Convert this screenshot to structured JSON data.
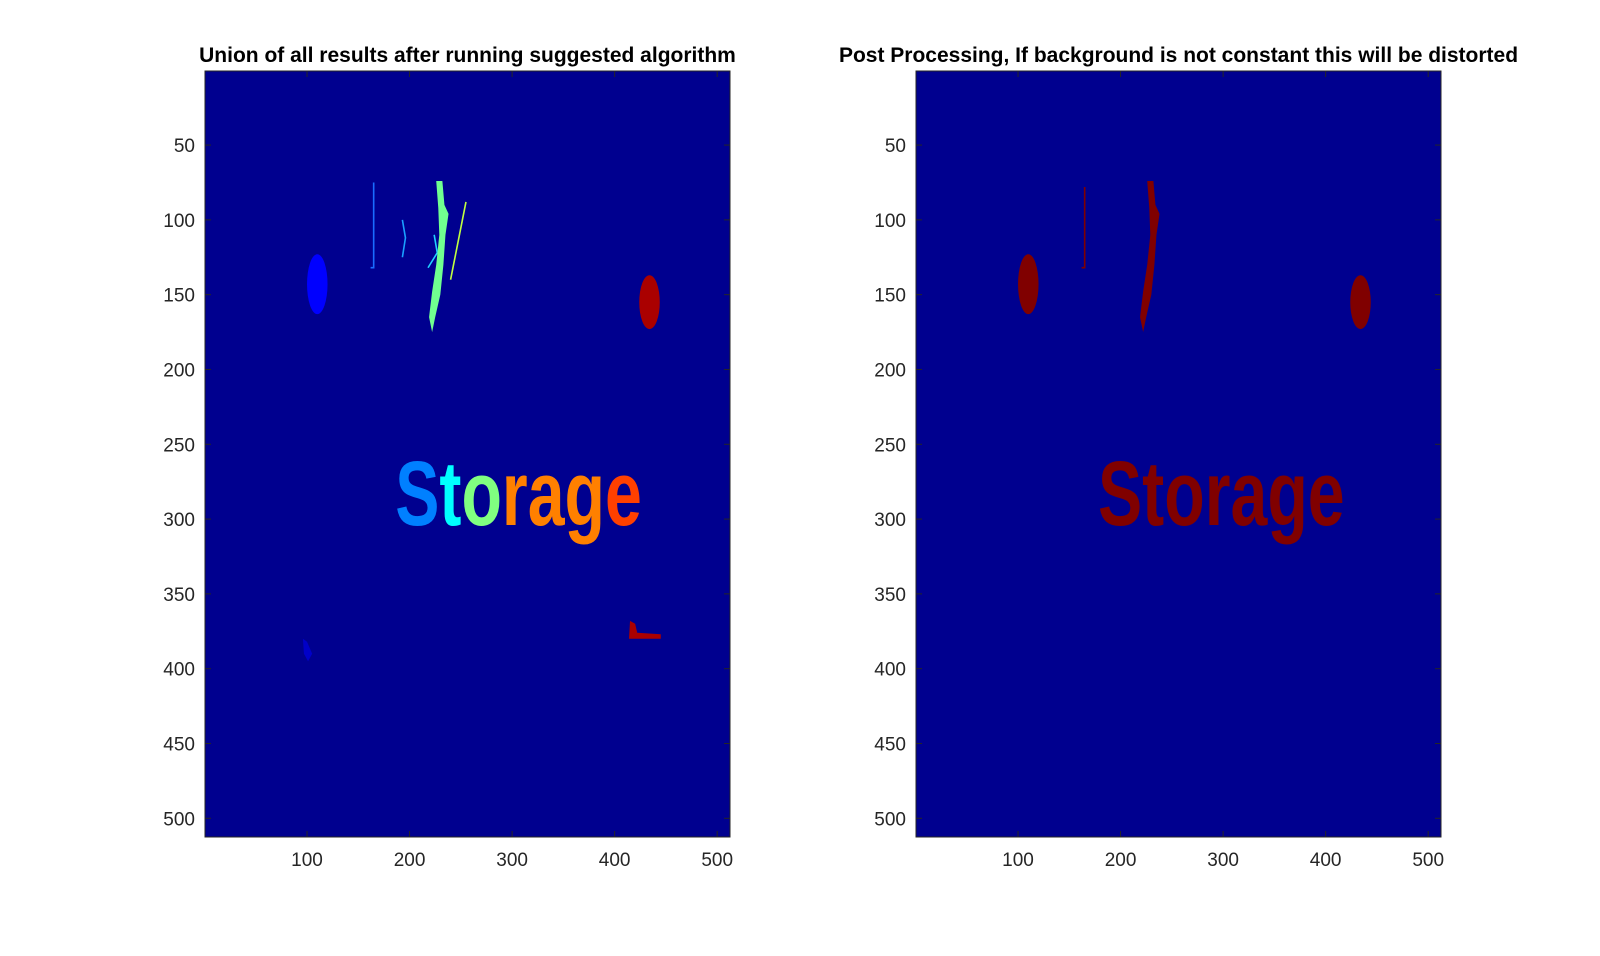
{
  "colors": {
    "background": "#00008f",
    "axis": "#262626",
    "tick_label": "#262626",
    "title": "#000000",
    "dark_red": "#800000"
  },
  "chart_data": [
    {
      "type": "heatmap",
      "title": "Union of all results after running suggested algorithm",
      "xlabel": "",
      "ylabel": "",
      "colormap": "jet",
      "xlim": [
        0.5,
        512.5
      ],
      "ylim": [
        0.5,
        512.5
      ],
      "y_reversed": true,
      "grid": false,
      "legend": "none",
      "xticks": [
        100,
        200,
        300,
        400,
        500
      ],
      "yticks": [
        50,
        100,
        150,
        200,
        250,
        300,
        350,
        400,
        450,
        500
      ],
      "text_overlay": {
        "text": "Storage",
        "x": 186,
        "y": 304,
        "letter_colors": [
          "#0080ff",
          "#00ffff",
          "#80ff80",
          "#ff8000",
          "#ff8000",
          "#ff8000",
          "#ff4000"
        ]
      },
      "regions": [
        {
          "shape": "ellipse",
          "cx": 110,
          "cy": 143,
          "rx": 10,
          "ry": 20,
          "color": "#0000ff"
        },
        {
          "shape": "ellipse",
          "cx": 434,
          "cy": 155,
          "rx": 10,
          "ry": 18,
          "color": "#aa0000"
        },
        {
          "shape": "stroke",
          "points": [
            [
              165,
              75
            ],
            [
              165,
              132
            ],
            [
              162,
              132
            ]
          ],
          "color": "#1a6cff"
        },
        {
          "shape": "stroke",
          "points": [
            [
              193,
              100
            ],
            [
              196,
              112
            ],
            [
              193,
              125
            ]
          ],
          "color": "#1aa0ff"
        },
        {
          "shape": "stroke",
          "points": [
            [
              224,
              110
            ],
            [
              227,
              122
            ],
            [
              218,
              132
            ]
          ],
          "color": "#20d0ff"
        },
        {
          "shape": "blob",
          "points": [
            [
              226,
              74
            ],
            [
              232,
              74
            ],
            [
              234,
              90
            ],
            [
              238,
              96
            ],
            [
              235,
              110
            ],
            [
              233,
              130
            ],
            [
              230,
              150
            ],
            [
              225,
              165
            ],
            [
              222,
              175
            ],
            [
              219,
              165
            ],
            [
              222,
              148
            ],
            [
              226,
              130
            ],
            [
              229,
              110
            ],
            [
              228,
              92
            ]
          ],
          "color": "#70ff90"
        },
        {
          "shape": "stroke",
          "points": [
            [
              255,
              88
            ],
            [
              240,
              140
            ]
          ],
          "color": "#c0ff40"
        },
        {
          "shape": "blob",
          "points": [
            [
              96,
              380
            ],
            [
              100,
              382
            ],
            [
              105,
              390
            ],
            [
              101,
              395
            ],
            [
              97,
              390
            ]
          ],
          "color": "#0000c8"
        },
        {
          "shape": "blob",
          "points": [
            [
              415,
              368
            ],
            [
              420,
              370
            ],
            [
              422,
              376
            ],
            [
              445,
              377
            ],
            [
              445,
              380
            ],
            [
              414,
              380
            ]
          ],
          "color": "#aa0000"
        }
      ]
    },
    {
      "type": "heatmap",
      "title": "Post Processing, If background is not constant this will be distorted",
      "xlabel": "",
      "ylabel": "",
      "colormap": "jet",
      "xlim": [
        0.5,
        512.5
      ],
      "ylim": [
        0.5,
        512.5
      ],
      "y_reversed": true,
      "grid": false,
      "legend": "none",
      "xticks": [
        100,
        200,
        300,
        400,
        500
      ],
      "yticks": [
        50,
        100,
        150,
        200,
        250,
        300,
        350,
        400,
        450,
        500
      ],
      "text_overlay": {
        "text": "Storage",
        "x": 178,
        "y": 304,
        "letter_colors": [
          "#800000",
          "#800000",
          "#800000",
          "#800000",
          "#800000",
          "#800000",
          "#800000"
        ]
      },
      "regions": [
        {
          "shape": "ellipse",
          "cx": 110,
          "cy": 143,
          "rx": 10,
          "ry": 20,
          "color": "#800000"
        },
        {
          "shape": "ellipse",
          "cx": 434,
          "cy": 155,
          "rx": 10,
          "ry": 18,
          "color": "#800000"
        },
        {
          "shape": "stroke",
          "points": [
            [
              165,
              78
            ],
            [
              165,
              132
            ],
            [
              162,
              132
            ]
          ],
          "color": "#800000"
        },
        {
          "shape": "blob",
          "points": [
            [
              226,
              74
            ],
            [
              232,
              74
            ],
            [
              234,
              90
            ],
            [
              238,
              96
            ],
            [
              235,
              110
            ],
            [
              233,
              130
            ],
            [
              230,
              150
            ],
            [
              225,
              165
            ],
            [
              222,
              175
            ],
            [
              219,
              165
            ],
            [
              222,
              148
            ],
            [
              226,
              130
            ],
            [
              229,
              110
            ],
            [
              228,
              92
            ]
          ],
          "color": "#800000"
        }
      ]
    }
  ]
}
